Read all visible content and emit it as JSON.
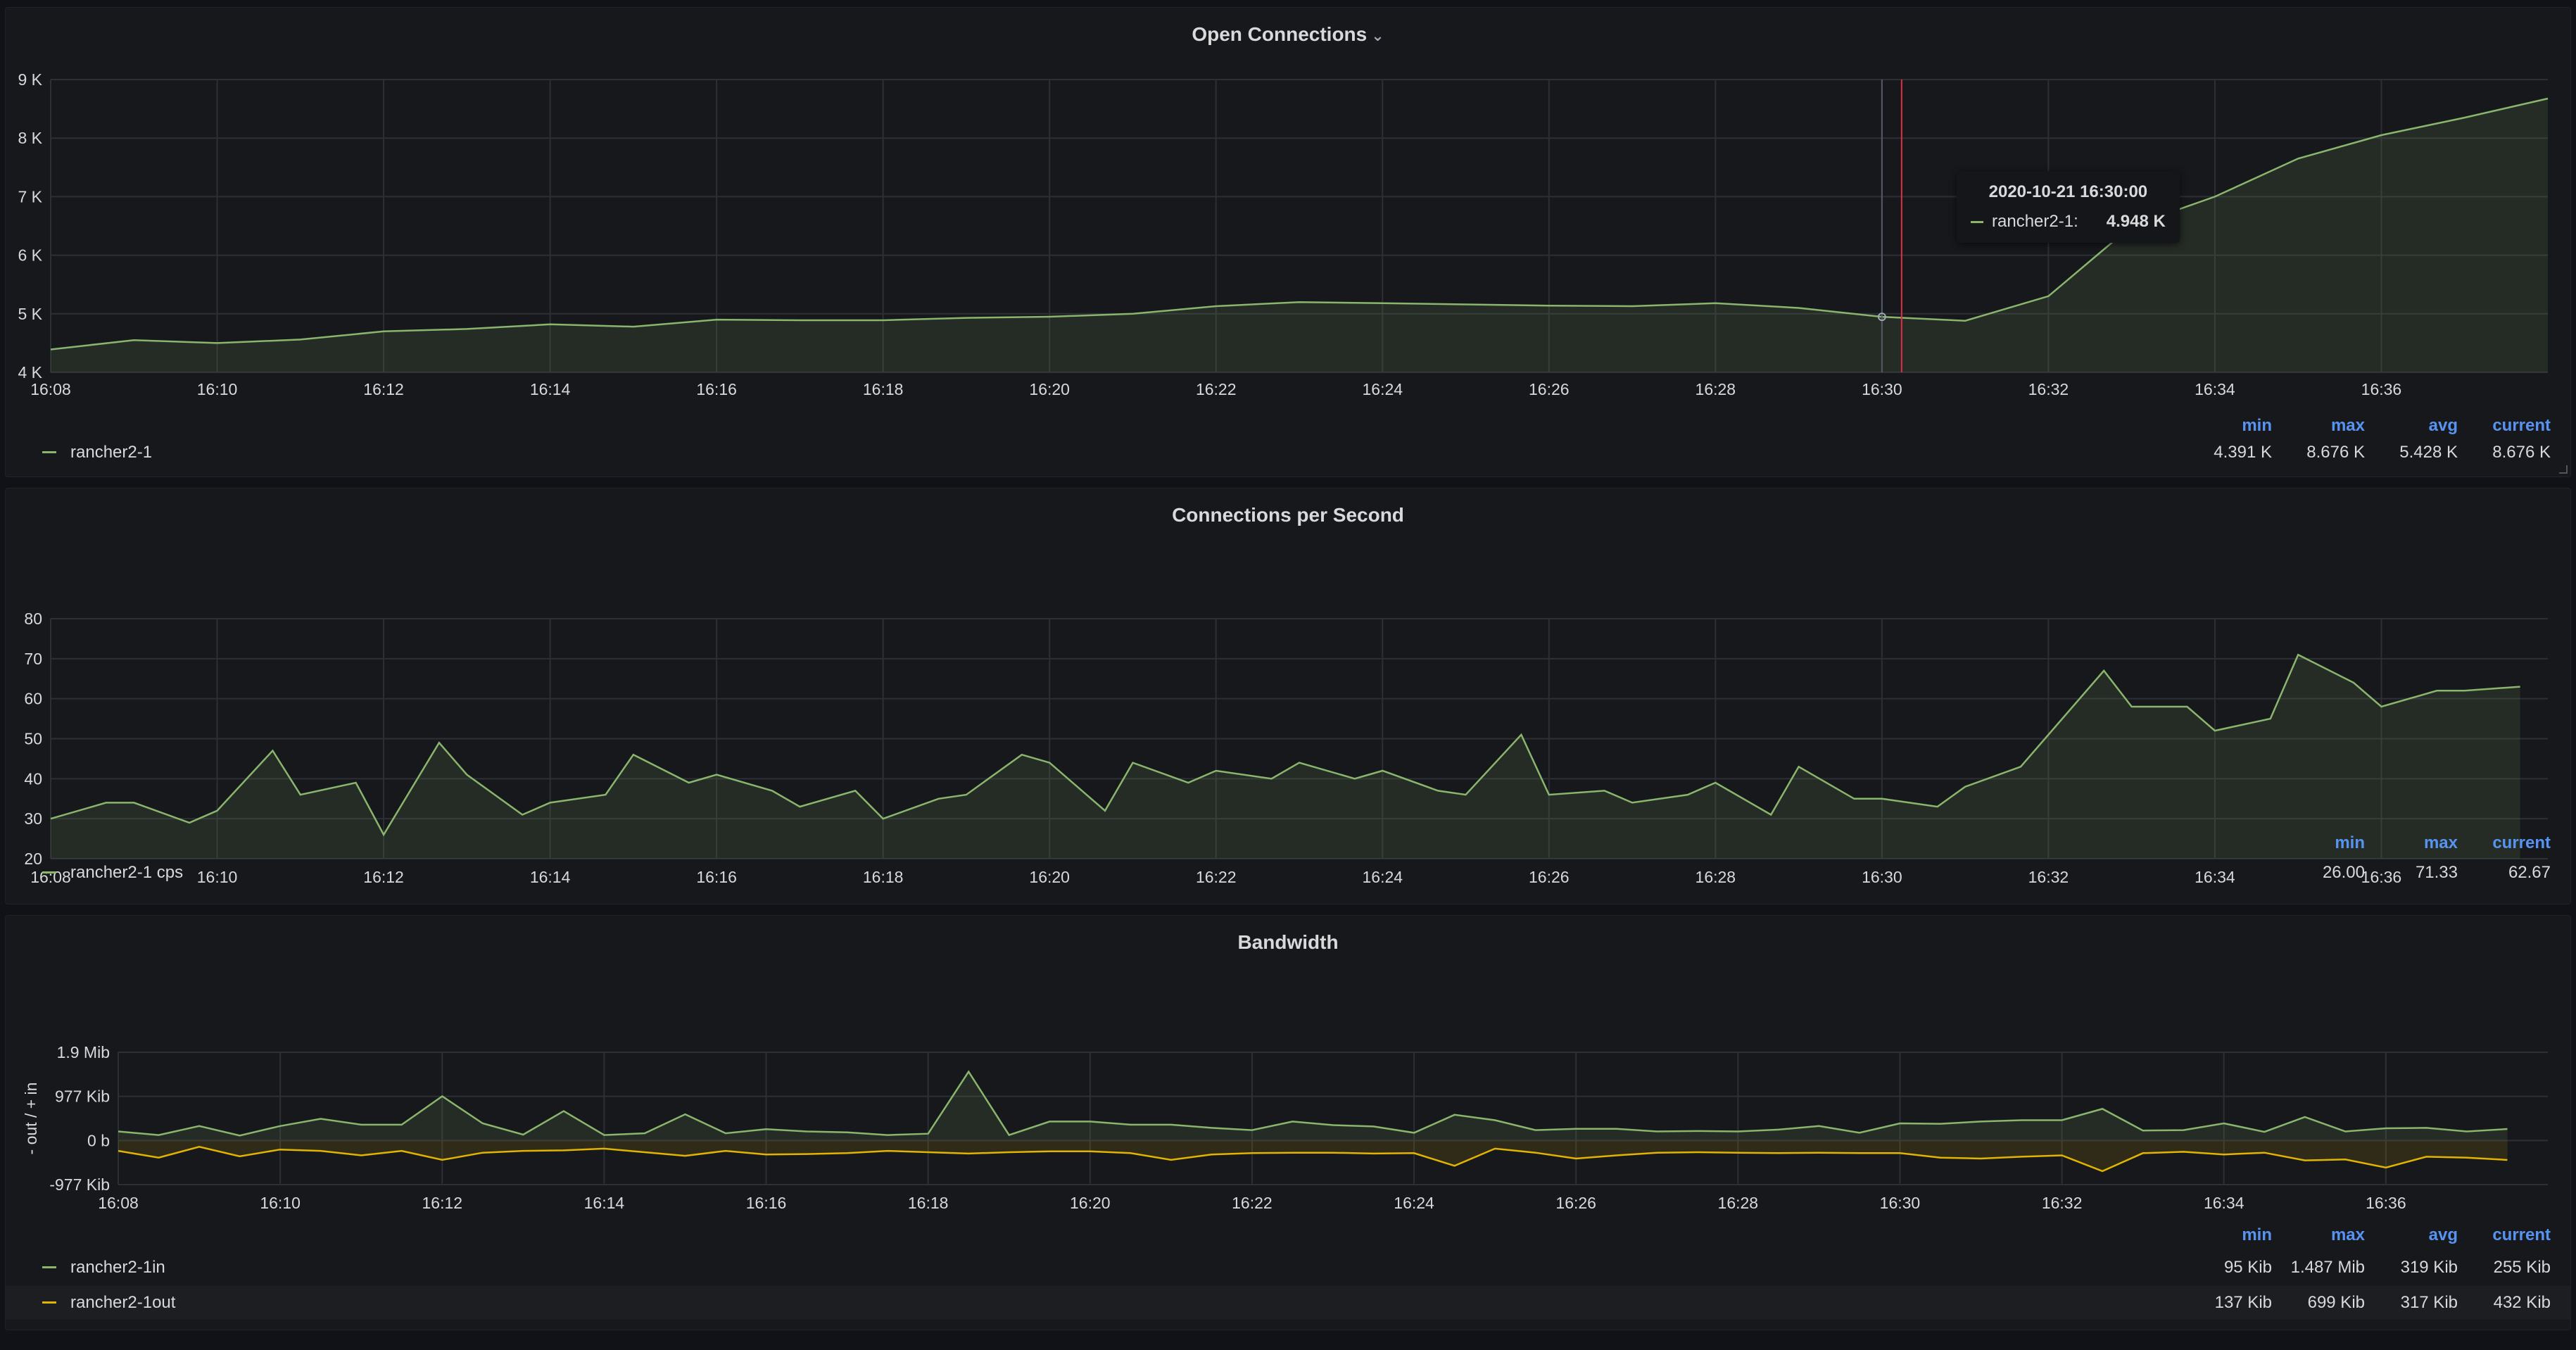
{
  "colors": {
    "green": "#8ab56d",
    "yellow": "#e0b400",
    "grid": "#2c2f35",
    "blue": "#5794f2",
    "cursor": "#e02f44"
  },
  "panels": [
    {
      "title": "Open Connections",
      "legend_headers": [
        "min",
        "max",
        "avg",
        "current"
      ],
      "legend": [
        {
          "name": "rancher2-1",
          "color": "#8ab56d",
          "stats": [
            "4.391 K",
            "8.676 K",
            "5.428 K",
            "8.676 K"
          ]
        }
      ],
      "tooltip": {
        "time": "2020-10-21 16:30:00",
        "series": "rancher2-1:",
        "value": "4.948 K"
      }
    },
    {
      "title": "Connections per Second",
      "legend_headers": [
        "min",
        "max",
        "current"
      ],
      "legend": [
        {
          "name": "rancher2-1 cps",
          "color": "#8ab56d",
          "stats": [
            "26.00",
            "71.33",
            "62.67"
          ]
        }
      ]
    },
    {
      "title": "Bandwidth",
      "legend_headers": [
        "min",
        "max",
        "avg",
        "current"
      ],
      "legend": [
        {
          "name": "rancher2-1in",
          "color": "#8ab56d",
          "stats": [
            "95 Kib",
            "1.487 Mib",
            "319 Kib",
            "255 Kib"
          ]
        },
        {
          "name": "rancher2-1out",
          "color": "#e0b400",
          "stats": [
            "137 Kib",
            "699 Kib",
            "317 Kib",
            "432 Kib"
          ]
        }
      ]
    }
  ],
  "chart_data": [
    {
      "type": "area",
      "title": "Open Connections",
      "x_ticks": [
        "16:08",
        "16:10",
        "16:12",
        "16:14",
        "16:16",
        "16:18",
        "16:20",
        "16:22",
        "16:24",
        "16:26",
        "16:28",
        "16:30",
        "16:32",
        "16:34",
        "16:36"
      ],
      "xlim": [
        "16:08",
        "16:38"
      ],
      "y_ticks": [
        "4 K",
        "5 K",
        "6 K",
        "7 K",
        "8 K",
        "9 K"
      ],
      "ylim": [
        4000,
        9000
      ],
      "grid": true,
      "series": [
        {
          "name": "rancher2-1",
          "color": "#8ab56d",
          "x": [
            "16:08",
            "16:09",
            "16:10",
            "16:11",
            "16:12",
            "16:13",
            "16:14",
            "16:15",
            "16:16",
            "16:17",
            "16:18",
            "16:19",
            "16:20",
            "16:21",
            "16:22",
            "16:23",
            "16:24",
            "16:25",
            "16:26",
            "16:27",
            "16:28",
            "16:29",
            "16:30",
            "16:31",
            "16:32",
            "16:33",
            "16:34",
            "16:35",
            "16:36",
            "16:37",
            "16:38"
          ],
          "values": [
            4391,
            4550,
            4500,
            4560,
            4700,
            4740,
            4820,
            4780,
            4900,
            4890,
            4890,
            4930,
            4950,
            5000,
            5130,
            5200,
            5180,
            5160,
            5140,
            5130,
            5180,
            5100,
            4948,
            4880,
            5300,
            6500,
            7000,
            7650,
            8050,
            8350,
            8676
          ]
        }
      ],
      "cursor": "16:30"
    },
    {
      "type": "area",
      "title": "Connections per Second",
      "x_ticks": [
        "16:08",
        "16:10",
        "16:12",
        "16:14",
        "16:16",
        "16:18",
        "16:20",
        "16:22",
        "16:24",
        "16:26",
        "16:28",
        "16:30",
        "16:32",
        "16:34",
        "16:36"
      ],
      "xlim": [
        "16:08",
        "16:38"
      ],
      "y_ticks": [
        "20",
        "30",
        "40",
        "50",
        "60",
        "70",
        "80"
      ],
      "ylim": [
        20,
        80
      ],
      "grid": true,
      "series": [
        {
          "name": "rancher2-1 cps",
          "color": "#8ab56d",
          "x": [
            "16:08",
            "16:08:40",
            "16:09",
            "16:09:40",
            "16:10",
            "16:10:40",
            "16:11",
            "16:11:40",
            "16:12",
            "16:12:40",
            "16:13",
            "16:13:40",
            "16:14",
            "16:14:40",
            "16:15",
            "16:15:40",
            "16:16",
            "16:16:40",
            "16:17",
            "16:17:40",
            "16:18",
            "16:18:40",
            "16:19",
            "16:19:40",
            "16:20",
            "16:20:40",
            "16:21",
            "16:21:40",
            "16:22",
            "16:22:40",
            "16:23",
            "16:23:40",
            "16:24",
            "16:24:40",
            "16:25",
            "16:25:40",
            "16:26",
            "16:26:40",
            "16:27",
            "16:27:40",
            "16:28",
            "16:28:40",
            "16:29",
            "16:29:40",
            "16:30",
            "16:30:40",
            "16:31",
            "16:31:40",
            "16:32",
            "16:32:40",
            "16:33",
            "16:33:40",
            "16:34",
            "16:34:40",
            "16:35",
            "16:35:40",
            "16:36",
            "16:36:40",
            "16:37",
            "16:37:40"
          ],
          "values": [
            30,
            34,
            34,
            29,
            32,
            47,
            36,
            39,
            26,
            49,
            41,
            31,
            34,
            36,
            46,
            39,
            41,
            37,
            33,
            37,
            30,
            35,
            36,
            46,
            44,
            32,
            44,
            39,
            42,
            40,
            44,
            40,
            42,
            37,
            36,
            51,
            36,
            37,
            34,
            36,
            39,
            31,
            43,
            35,
            35,
            33,
            38,
            43,
            51,
            67,
            58,
            58,
            52,
            55,
            71,
            64,
            58,
            62,
            62,
            63
          ]
        }
      ]
    },
    {
      "type": "area",
      "title": "Bandwidth",
      "ylabel": "- out / + in",
      "x_ticks": [
        "16:08",
        "16:10",
        "16:12",
        "16:14",
        "16:16",
        "16:18",
        "16:20",
        "16:22",
        "16:24",
        "16:26",
        "16:28",
        "16:30",
        "16:32",
        "16:34",
        "16:36"
      ],
      "xlim": [
        "16:08",
        "16:38"
      ],
      "y_ticks": [
        "-977 Kib",
        "0 b",
        "977 Kib",
        "1.9 Mib"
      ],
      "ylim": [
        -977,
        1954
      ],
      "y_unit": "Kib",
      "grid": true,
      "series": [
        {
          "name": "rancher2-1in",
          "color": "#8ab56d",
          "x": [
            "16:08",
            "16:08:30",
            "16:09",
            "16:09:30",
            "16:10",
            "16:10:30",
            "16:11",
            "16:11:30",
            "16:12",
            "16:12:30",
            "16:13",
            "16:13:30",
            "16:14",
            "16:14:30",
            "16:15",
            "16:15:30",
            "16:16",
            "16:16:30",
            "16:17",
            "16:17:30",
            "16:18",
            "16:18:30",
            "16:19",
            "16:19:30",
            "16:20",
            "16:20:30",
            "16:21",
            "16:21:30",
            "16:22",
            "16:22:30",
            "16:23",
            "16:23:30",
            "16:24",
            "16:24:30",
            "16:25",
            "16:25:30",
            "16:26",
            "16:26:30",
            "16:27",
            "16:27:30",
            "16:28",
            "16:28:30",
            "16:29",
            "16:29:30",
            "16:30",
            "16:30:30",
            "16:31",
            "16:31:30",
            "16:32",
            "16:32:30",
            "16:33",
            "16:33:30",
            "16:34",
            "16:34:30",
            "16:35",
            "16:35:30",
            "16:36",
            "16:36:30",
            "16:37",
            "16:37:30"
          ],
          "values": [
            200,
            120,
            320,
            110,
            320,
            480,
            350,
            350,
            980,
            380,
            130,
            650,
            120,
            160,
            580,
            160,
            250,
            200,
            180,
            120,
            150,
            1523,
            120,
            420,
            420,
            350,
            350,
            280,
            230,
            420,
            340,
            310,
            170,
            570,
            450,
            230,
            260,
            260,
            200,
            210,
            200,
            240,
            320,
            170,
            380,
            370,
            420,
            450,
            450,
            700,
            220,
            230,
            380,
            190,
            520,
            200,
            270,
            280,
            200,
            255
          ]
        },
        {
          "name": "rancher2-1out",
          "color": "#e0b400",
          "x": [
            "16:08",
            "16:08:30",
            "16:09",
            "16:09:30",
            "16:10",
            "16:10:30",
            "16:11",
            "16:11:30",
            "16:12",
            "16:12:30",
            "16:13",
            "16:13:30",
            "16:14",
            "16:14:30",
            "16:15",
            "16:15:30",
            "16:16",
            "16:16:30",
            "16:17",
            "16:17:30",
            "16:18",
            "16:18:30",
            "16:19",
            "16:19:30",
            "16:20",
            "16:20:30",
            "16:21",
            "16:21:30",
            "16:22",
            "16:22:30",
            "16:23",
            "16:23:30",
            "16:24",
            "16:24:30",
            "16:25",
            "16:25:30",
            "16:26",
            "16:26:30",
            "16:27",
            "16:27:30",
            "16:28",
            "16:28:30",
            "16:29",
            "16:29:30",
            "16:30",
            "16:30:30",
            "16:31",
            "16:31:30",
            "16:32",
            "16:32:30",
            "16:33",
            "16:33:30",
            "16:34",
            "16:34:30",
            "16:35",
            "16:35:30",
            "16:36",
            "16:36:30",
            "16:37",
            "16:37:30"
          ],
          "values": [
            -230,
            -380,
            -140,
            -350,
            -200,
            -230,
            -330,
            -230,
            -430,
            -270,
            -230,
            -220,
            -180,
            -260,
            -340,
            -230,
            -310,
            -300,
            -280,
            -230,
            -260,
            -290,
            -260,
            -240,
            -240,
            -280,
            -430,
            -310,
            -280,
            -270,
            -270,
            -290,
            -280,
            -560,
            -180,
            -270,
            -400,
            -330,
            -270,
            -260,
            -270,
            -280,
            -270,
            -280,
            -280,
            -380,
            -400,
            -360,
            -330,
            -680,
            -280,
            -250,
            -310,
            -270,
            -440,
            -420,
            -600,
            -360,
            -380,
            -432
          ]
        }
      ]
    }
  ]
}
